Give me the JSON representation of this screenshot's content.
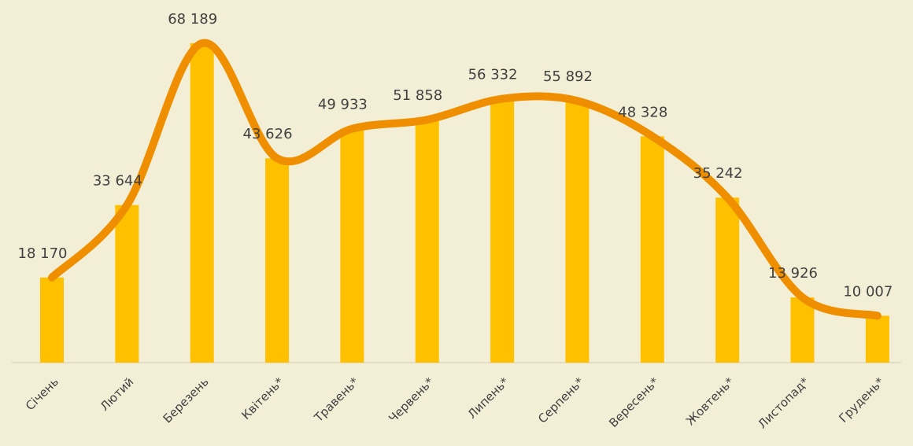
{
  "chart_data": {
    "type": "bar-line",
    "categories": [
      "Січень",
      "Лютий",
      "Березень",
      "Квітень*",
      "Травень*",
      "Червень*",
      "Липень*",
      "Серпень*",
      "Вересень*",
      "Жовтень*",
      "Листопад*",
      "Грудень*"
    ],
    "values": [
      18170,
      33644,
      68189,
      43626,
      49933,
      51858,
      56332,
      55892,
      48328,
      35242,
      13926,
      10007
    ],
    "value_labels": [
      "18 170",
      "33 644",
      "68 189",
      "43 626",
      "49 933",
      "51 858",
      "56 332",
      "55 892",
      "48 328",
      "35 242",
      "13 926",
      "10 007"
    ],
    "bar_color": "#ffc000",
    "line_color": "#ef8f00"
  }
}
